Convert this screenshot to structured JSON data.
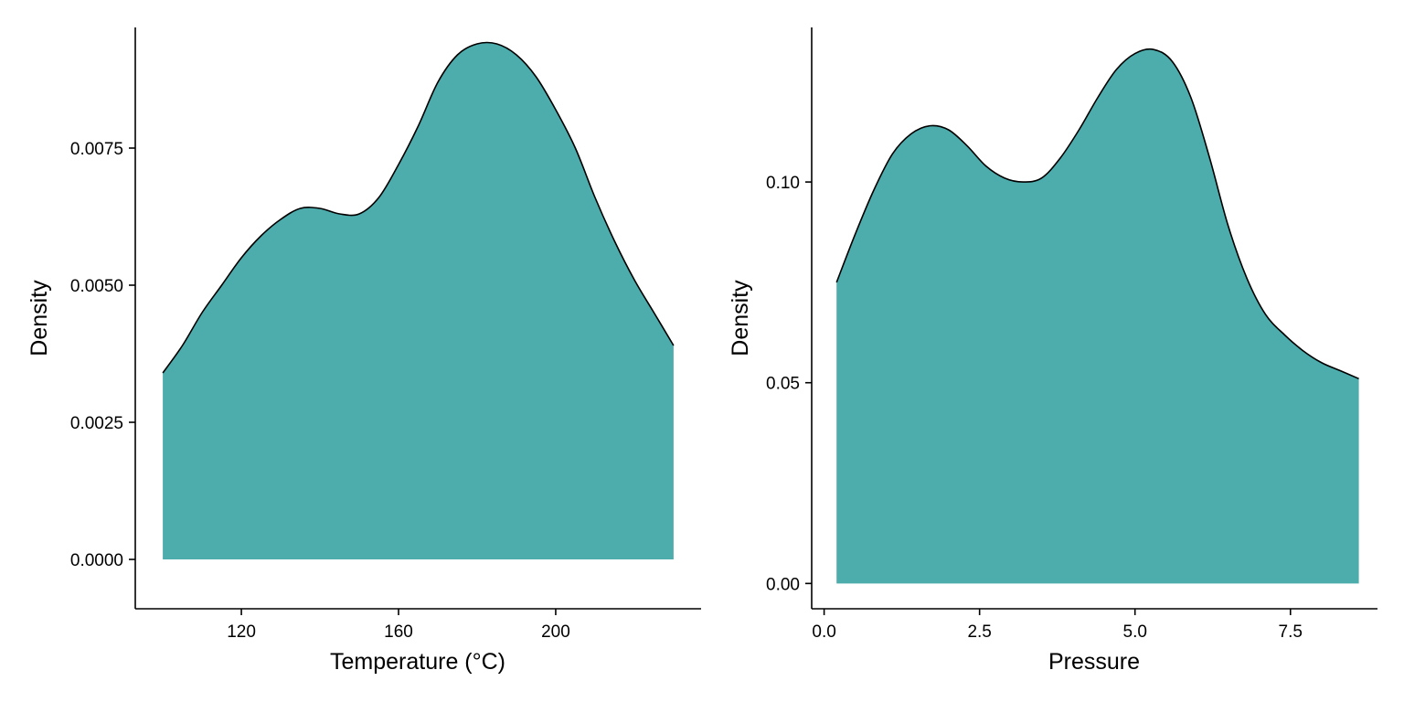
{
  "colors": {
    "fill": "#4dadad",
    "line": "#000000",
    "axis": "#000000",
    "background": "#ffffff"
  },
  "chart_data": [
    {
      "type": "area",
      "subtype": "density",
      "title": "",
      "xlabel": "Temperature (°C)",
      "ylabel": "Density",
      "xlim": [
        93,
        237
      ],
      "ylim": [
        -0.0009,
        0.0097
      ],
      "xticks": [
        120,
        160,
        200
      ],
      "xtick_labels": [
        "120",
        "160",
        "200"
      ],
      "yticks": [
        0,
        0.0025,
        0.005,
        0.0075
      ],
      "ytick_labels": [
        "0.0000",
        "0.0025",
        "0.0050",
        "0.0075"
      ],
      "grid": false,
      "legend": "none",
      "x": [
        100,
        105,
        110,
        115,
        120,
        125,
        130,
        135,
        140,
        145,
        150,
        155,
        160,
        165,
        170,
        175,
        180,
        185,
        190,
        195,
        200,
        205,
        210,
        215,
        220,
        225,
        230
      ],
      "y": [
        0.0034,
        0.0039,
        0.0045,
        0.005,
        0.0055,
        0.0059,
        0.0062,
        0.0064,
        0.0064,
        0.0063,
        0.0063,
        0.0066,
        0.0072,
        0.0079,
        0.0087,
        0.0092,
        0.0094,
        0.0094,
        0.0092,
        0.0088,
        0.0082,
        0.0075,
        0.0066,
        0.0058,
        0.0051,
        0.0045,
        0.0039
      ]
    },
    {
      "type": "area",
      "subtype": "density",
      "title": "",
      "xlabel": "Pressure",
      "ylabel": "Density",
      "xlim": [
        -0.2,
        8.9
      ],
      "ylim": [
        -0.0063,
        0.1385
      ],
      "xticks": [
        0,
        2.5,
        5,
        7.5
      ],
      "xtick_labels": [
        "0.0",
        "2.5",
        "5.0",
        "7.5"
      ],
      "yticks": [
        0,
        0.05,
        0.1
      ],
      "ytick_labels": [
        "0.00",
        "0.05",
        "0.10"
      ],
      "grid": false,
      "legend": "none",
      "x": [
        0.2,
        0.5,
        0.8,
        1.1,
        1.4,
        1.7,
        2.0,
        2.3,
        2.6,
        2.9,
        3.2,
        3.5,
        3.8,
        4.1,
        4.4,
        4.7,
        5.0,
        5.3,
        5.6,
        5.9,
        6.2,
        6.5,
        6.8,
        7.1,
        7.4,
        7.7,
        8.0,
        8.3,
        8.6
      ],
      "y": [
        0.075,
        0.087,
        0.098,
        0.107,
        0.112,
        0.114,
        0.113,
        0.109,
        0.104,
        0.101,
        0.1,
        0.101,
        0.106,
        0.113,
        0.121,
        0.128,
        0.132,
        0.133,
        0.13,
        0.121,
        0.106,
        0.089,
        0.076,
        0.067,
        0.062,
        0.058,
        0.055,
        0.053,
        0.051
      ]
    }
  ]
}
